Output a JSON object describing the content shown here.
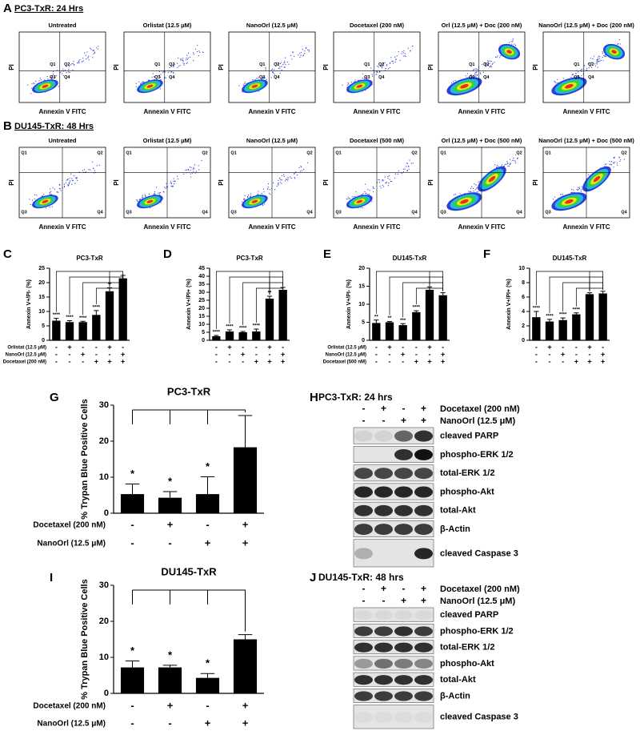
{
  "panel_letters": [
    "A",
    "B",
    "C",
    "D",
    "E",
    "F",
    "G",
    "H",
    "I",
    "J"
  ],
  "flow": [
    {
      "title": "PC3-TxR: 24 Hrs",
      "xlabel": "Annexin V FITC",
      "ylabel": "PI",
      "quadrants": [
        "Q1",
        "Q2",
        "Q3",
        "Q4"
      ],
      "plots": [
        "Untreated",
        "Orlistat (12.5 μM)",
        "NanoOrl (12.5 μM)",
        "Docetaxel (200 nM)",
        "Orl (12.5 μM) + Doc (200 nM)",
        "NanoOrl (12.5 μM) + Doc (200 nM)"
      ]
    },
    {
      "title": "DU145-TxR: 48 Hrs",
      "xlabel": "Annexin V FITC",
      "ylabel": "PI",
      "quadrants": [
        "Q1",
        "Q2",
        "Q3",
        "Q4"
      ],
      "plots": [
        "Untreated",
        "Orlistat (12.5 μM)",
        "NanoOrl (12.5 μM)",
        "Docetaxel (500 nM)",
        "Orl (12.5 μM) + Doc (500 nM)",
        "NanoOrl (12.5 μM) + Doc (500 nM)"
      ]
    }
  ],
  "chart_data": [
    {
      "type": "bar",
      "title": "PC3-TxR",
      "ylabel": "Annexin V+/PI- (%)",
      "ylim": [
        0,
        25
      ],
      "yticks": [
        0,
        5,
        10,
        15,
        20,
        25
      ],
      "values": [
        6.8,
        6.3,
        6.3,
        8.8,
        17.0,
        21.5
      ],
      "errors": [
        0.8,
        0.5,
        0.3,
        1.5,
        1.2,
        1.0
      ],
      "stars": [
        "****",
        "****",
        "****",
        "****",
        "**",
        null
      ],
      "rows": [
        {
          "label": "Orlistat (12.5 μM)",
          "signs": [
            "-",
            "+",
            "-",
            "-",
            "+",
            "-"
          ]
        },
        {
          "label": "NanoOrl (12.5 μM)",
          "signs": [
            "-",
            "-",
            "+",
            "-",
            "-",
            "+"
          ]
        },
        {
          "label": "Docetaxel (200 nM)",
          "signs": [
            "-",
            "-",
            "-",
            "+",
            "+",
            "+"
          ]
        }
      ]
    },
    {
      "type": "bar",
      "title": "PC3-TxR",
      "ylabel": "Annexin V+/PI+ (%)",
      "ylim": [
        0,
        45
      ],
      "yticks": [
        0,
        5,
        10,
        15,
        20,
        25,
        30,
        35,
        40,
        45
      ],
      "values": [
        2.5,
        5.5,
        5.0,
        5.5,
        26.0,
        31.5
      ],
      "errors": [
        0.5,
        1.0,
        0.5,
        1.5,
        1.5,
        1.5
      ],
      "stars": [
        "****",
        "****",
        "****",
        "****",
        "**",
        null
      ],
      "rows": [
        {
          "signs": [
            "-",
            "+",
            "-",
            "-",
            "+",
            "-"
          ]
        },
        {
          "signs": [
            "-",
            "-",
            "+",
            "-",
            "-",
            "+"
          ]
        },
        {
          "signs": [
            "-",
            "-",
            "-",
            "+",
            "+",
            "+"
          ]
        }
      ]
    },
    {
      "type": "bar",
      "title": "DU145-TxR",
      "ylabel": "Annexin V+/PI- (%)",
      "ylim": [
        0,
        20
      ],
      "yticks": [
        0,
        5,
        10,
        15,
        20
      ],
      "values": [
        4.8,
        5.0,
        4.2,
        7.8,
        14.0,
        12.5
      ],
      "errors": [
        0.8,
        0.2,
        0.4,
        0.4,
        0.8,
        0.7
      ],
      "stars": [
        "**",
        "**",
        "***",
        "****",
        null,
        null
      ],
      "rows": [
        {
          "label": "Orlistat (12.5 μM)",
          "signs": [
            "-",
            "+",
            "-",
            "-",
            "+",
            "-"
          ]
        },
        {
          "label": "NanoOrl (12.5 μM)",
          "signs": [
            "-",
            "-",
            "+",
            "-",
            "-",
            "+"
          ]
        },
        {
          "label": "Docetaxel (500 nM)",
          "signs": [
            "-",
            "-",
            "-",
            "+",
            "+",
            "+"
          ]
        }
      ]
    },
    {
      "type": "bar",
      "title": "DU145-TxR",
      "ylabel": "Annexin V+/PI+ (%)",
      "ylim": [
        0,
        10
      ],
      "yticks": [
        0,
        2,
        4,
        6,
        8,
        10
      ],
      "values": [
        3.2,
        2.6,
        2.8,
        3.6,
        6.4,
        6.5
      ],
      "errors": [
        0.8,
        0.3,
        0.3,
        0.2,
        0.2,
        0.3
      ],
      "stars": [
        "****",
        "****",
        "****",
        "****",
        null,
        null
      ],
      "rows": [
        {
          "signs": [
            "-",
            "+",
            "-",
            "-",
            "+",
            "-"
          ]
        },
        {
          "signs": [
            "-",
            "-",
            "+",
            "-",
            "-",
            "+"
          ]
        },
        {
          "signs": [
            "-",
            "-",
            "-",
            "+",
            "+",
            "+"
          ]
        }
      ]
    },
    {
      "type": "bar",
      "title": "PC3-TxR",
      "ylabel": "% Trypan Blue Positive Cells",
      "ylim": [
        0,
        30
      ],
      "yticks": [
        0,
        10,
        20,
        30
      ],
      "values": [
        5.3,
        4.3,
        5.3,
        18.3
      ],
      "errors": [
        2.8,
        1.7,
        4.8,
        8.8
      ],
      "stars": [
        "*",
        "*",
        "*",
        null
      ],
      "rows": [
        {
          "label": "Docetaxel (200 nM)",
          "signs": [
            "-",
            "+",
            "-",
            "+"
          ]
        },
        {
          "label": "NanoOrl (12.5 μM)",
          "signs": [
            "-",
            "-",
            "+",
            "+"
          ]
        }
      ]
    },
    {
      "type": "bar",
      "title": "DU145-TxR",
      "ylabel": "% Trypan Blue Positive Cells",
      "ylim": [
        0,
        30
      ],
      "yticks": [
        0,
        10,
        20,
        30
      ],
      "values": [
        7.2,
        7.2,
        4.3,
        15.0
      ],
      "errors": [
        1.8,
        0.6,
        1.2,
        1.3
      ],
      "stars": [
        "*",
        "*",
        "*",
        null
      ],
      "rows": [
        {
          "label": "Docetaxel (200 nM)",
          "signs": [
            "-",
            "+",
            "-",
            "+"
          ]
        },
        {
          "label": "NanoOrl (12.5 μM)",
          "signs": [
            "-",
            "-",
            "+",
            "+"
          ]
        }
      ]
    }
  ],
  "blots": [
    {
      "title": "PC3-TxR: 24 hrs",
      "treatments": [
        {
          "label": "Docetaxel (200 nM)",
          "signs": [
            "-",
            "+",
            "-",
            "+"
          ]
        },
        {
          "label": "NanoOrl (12.5 μM)",
          "signs": [
            "-",
            "-",
            "+",
            "+"
          ]
        }
      ],
      "bands": [
        "cleaved PARP",
        "phospho-ERK 1/2",
        "total-ERK 1/2",
        "phospho-Akt",
        "total-Akt",
        "β-Actin",
        "cleaved Caspase 3"
      ]
    },
    {
      "title": "DU145-TxR: 48 hrs",
      "treatments": [
        {
          "label": "Docetaxel (200 nM)",
          "signs": [
            "-",
            "+",
            "-",
            "+"
          ]
        },
        {
          "label": "NanoOrl (12.5 μM)",
          "signs": [
            "-",
            "-",
            "+",
            "+"
          ]
        }
      ],
      "bands": [
        "cleaved PARP",
        "phospho-ERK 1/2",
        "total-ERK 1/2",
        "phospho-Akt",
        "total-Akt",
        "β-Actin",
        "cleaved Caspase 3"
      ]
    }
  ]
}
